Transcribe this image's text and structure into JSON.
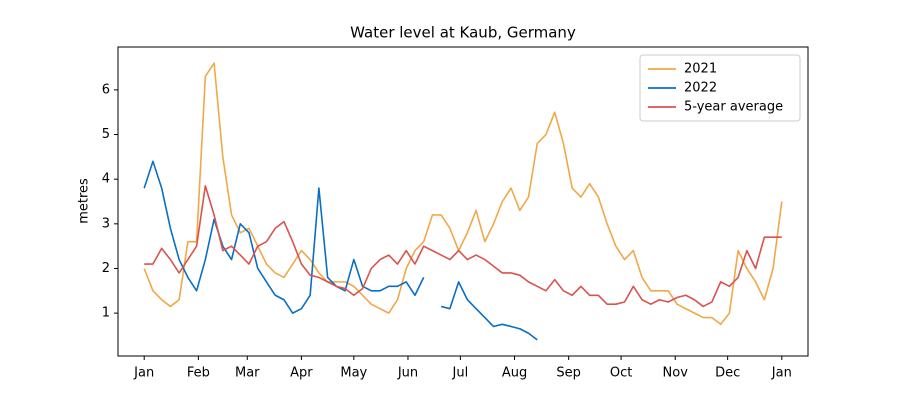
{
  "chart_data": {
    "type": "line",
    "title": "Water level at Kaub, Germany",
    "y_label": "metres",
    "x": [
      0,
      5,
      10,
      15,
      20,
      25,
      30,
      35,
      40,
      45,
      50,
      55,
      60,
      65,
      70,
      75,
      80,
      85,
      90,
      95,
      100,
      105,
      110,
      115,
      120,
      125,
      130,
      135,
      140,
      145,
      150,
      155,
      160,
      165,
      170,
      175,
      180,
      185,
      190,
      195,
      200,
      205,
      210,
      215,
      220,
      225,
      230,
      235,
      240,
      245,
      250,
      255,
      260,
      265,
      270,
      275,
      280,
      285,
      290,
      295,
      300,
      305,
      310,
      315,
      320,
      325,
      330,
      335,
      340,
      345,
      350,
      355,
      360,
      365
    ],
    "xlim": [
      -15,
      380
    ],
    "xticks": [
      {
        "value": 0,
        "label": "Jan"
      },
      {
        "value": 31,
        "label": "Feb"
      },
      {
        "value": 59,
        "label": "Mar"
      },
      {
        "value": 90,
        "label": "Apr"
      },
      {
        "value": 120,
        "label": "May"
      },
      {
        "value": 151,
        "label": "Jun"
      },
      {
        "value": 181,
        "label": "Jul"
      },
      {
        "value": 212,
        "label": "Aug"
      },
      {
        "value": 243,
        "label": "Sep"
      },
      {
        "value": 273,
        "label": "Oct"
      },
      {
        "value": 304,
        "label": "Nov"
      },
      {
        "value": 334,
        "label": "Dec"
      },
      {
        "value": 365,
        "label": "Jan"
      }
    ],
    "ylim": [
      0.04,
      6.96
    ],
    "yticks": [
      1,
      2,
      3,
      4,
      5,
      6
    ],
    "legend": "upper right",
    "series": [
      {
        "name": "2021",
        "color": "#f0a848",
        "values": [
          2.0,
          1.5,
          1.3,
          1.15,
          1.3,
          2.6,
          2.6,
          6.3,
          6.6,
          4.5,
          3.2,
          2.8,
          2.9,
          2.5,
          2.1,
          1.9,
          1.8,
          2.1,
          2.4,
          2.2,
          1.9,
          1.7,
          1.7,
          1.7,
          1.6,
          1.4,
          1.2,
          1.1,
          1.0,
          1.3,
          2.0,
          2.4,
          2.6,
          3.2,
          3.2,
          2.9,
          2.4,
          2.8,
          3.3,
          2.6,
          3.0,
          3.5,
          3.8,
          3.3,
          3.6,
          4.8,
          5.0,
          5.5,
          4.8,
          3.8,
          3.6,
          3.9,
          3.6,
          3.0,
          2.5,
          2.2,
          2.4,
          1.8,
          1.5,
          1.5,
          1.5,
          1.2,
          1.1,
          1.0,
          0.9,
          0.9,
          0.75,
          1.0,
          2.4,
          2.0,
          1.7,
          1.3,
          2.0,
          3.5
        ]
      },
      {
        "name": "2022",
        "color": "#0a6fc2",
        "values": [
          3.8,
          4.4,
          3.8,
          2.9,
          2.2,
          1.8,
          1.5,
          2.2,
          3.1,
          2.5,
          2.2,
          3.0,
          2.8,
          2.0,
          1.7,
          1.4,
          1.3,
          1.0,
          1.1,
          1.4,
          3.8,
          1.8,
          1.6,
          1.5,
          2.2,
          1.6,
          1.5,
          1.5,
          1.6,
          1.6,
          1.7,
          1.4,
          1.8,
          null,
          1.15,
          1.1,
          1.7,
          1.3,
          1.1,
          0.9,
          0.7,
          0.75,
          0.7,
          0.65,
          0.55,
          0.4,
          null,
          null,
          null,
          null,
          null,
          null,
          null,
          null,
          null,
          null,
          null,
          null,
          null,
          null,
          null,
          null,
          null,
          null,
          null,
          null,
          null,
          null,
          null,
          null,
          null,
          null,
          null,
          null
        ]
      },
      {
        "name": "5-year average",
        "color": "#d9534f",
        "values": [
          2.1,
          2.1,
          2.45,
          2.2,
          1.9,
          2.2,
          2.5,
          3.85,
          3.2,
          2.4,
          2.5,
          2.3,
          2.1,
          2.5,
          2.6,
          2.9,
          3.05,
          2.6,
          2.1,
          1.85,
          1.8,
          1.7,
          1.6,
          1.55,
          1.4,
          1.55,
          2.0,
          2.2,
          2.3,
          2.1,
          2.4,
          2.1,
          2.5,
          2.4,
          2.3,
          2.2,
          2.4,
          2.2,
          2.3,
          2.2,
          2.05,
          1.9,
          1.9,
          1.85,
          1.7,
          1.6,
          1.5,
          1.75,
          1.5,
          1.4,
          1.6,
          1.4,
          1.4,
          1.2,
          1.2,
          1.25,
          1.6,
          1.3,
          1.2,
          1.3,
          1.25,
          1.35,
          1.4,
          1.3,
          1.15,
          1.25,
          1.7,
          1.6,
          1.8,
          2.4,
          2.0,
          2.7,
          2.7,
          2.7
        ]
      }
    ]
  }
}
